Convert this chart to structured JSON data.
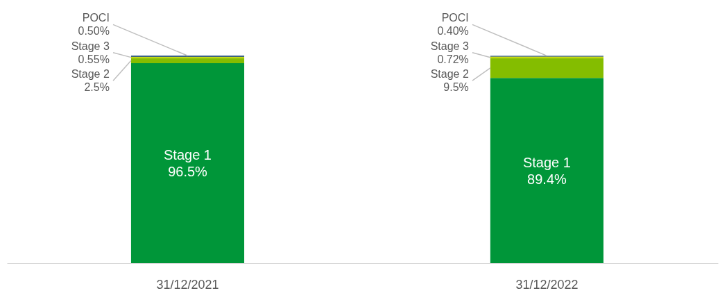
{
  "chart_data": {
    "type": "bar",
    "stacked": true,
    "categories": [
      "31/12/2021",
      "31/12/2022"
    ],
    "series": [
      {
        "name": "Stage 1",
        "color": "#009639",
        "values": [
          96.5,
          89.4
        ],
        "value_labels": [
          "96.5%",
          "89.4%"
        ]
      },
      {
        "name": "Stage 2",
        "color": "#84bd00",
        "values": [
          2.5,
          9.5
        ],
        "value_labels": [
          "2.5%",
          "9.5%"
        ]
      },
      {
        "name": "Stage 3",
        "color": "#c4d600",
        "values": [
          0.55,
          0.72
        ],
        "value_labels": [
          "0.55%",
          "0.72%"
        ]
      },
      {
        "name": "POCI",
        "color": "#003366",
        "values": [
          0.5,
          0.4
        ],
        "value_labels": [
          "0.50%",
          "0.40%"
        ]
      }
    ],
    "grid": false
  }
}
